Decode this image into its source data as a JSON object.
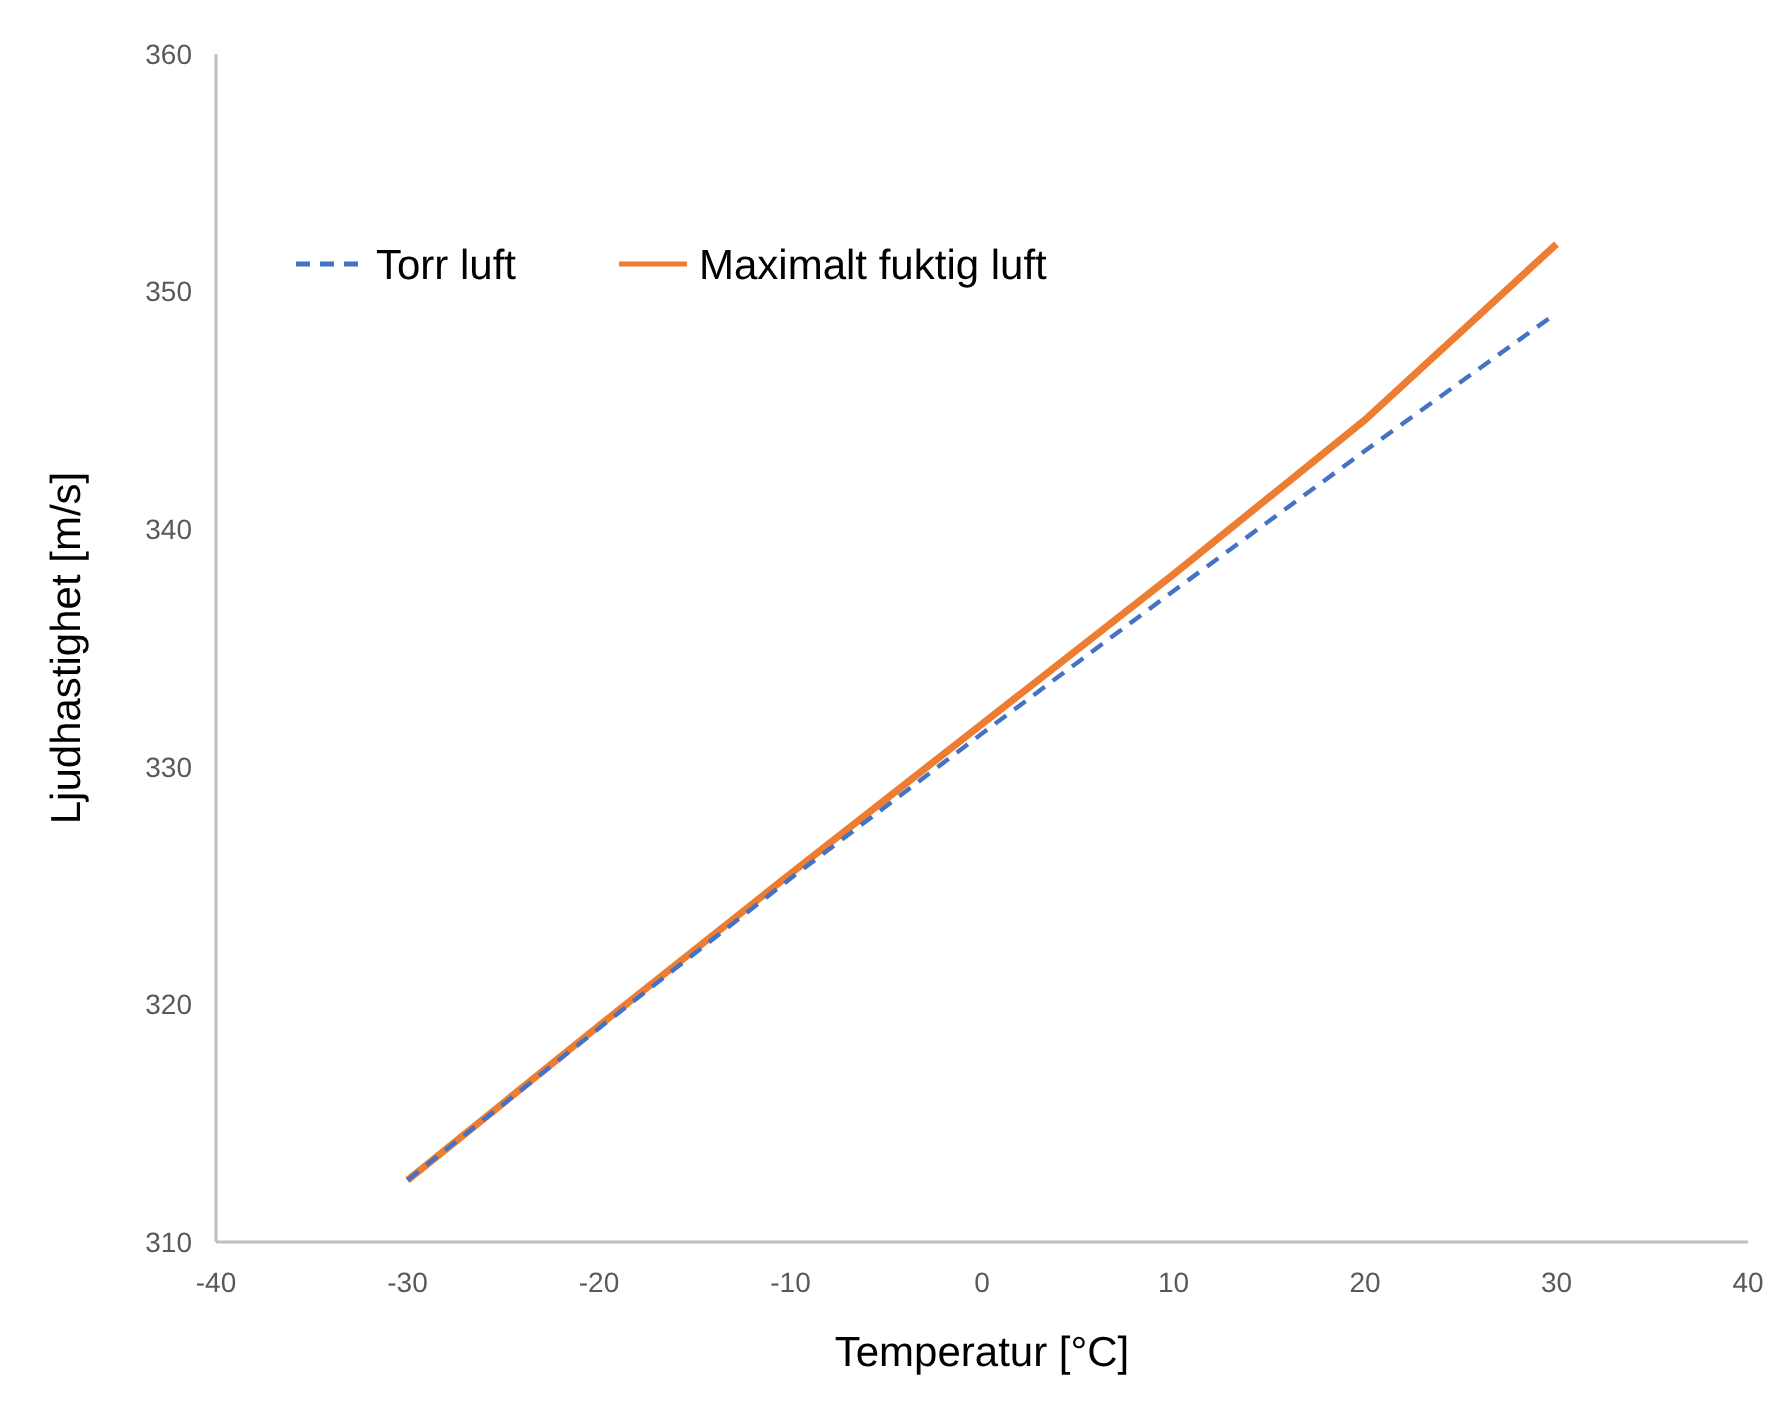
{
  "chart_data": {
    "type": "line",
    "xlabel": "Temperatur [°C]",
    "ylabel": "Ljudhastighet [m/s]",
    "x": [
      -30,
      -20,
      -10,
      0,
      10,
      20,
      30
    ],
    "series": [
      {
        "name": "Torr luft",
        "color": "#4472c4",
        "line_style": "dashed",
        "values": [
          312.6,
          319.0,
          325.3,
          331.4,
          337.4,
          343.3,
          349.1
        ]
      },
      {
        "name": "Maximalt fuktig luft",
        "color": "#ed7d31",
        "line_style": "solid",
        "values": [
          312.6,
          319.1,
          325.5,
          331.8,
          338.1,
          344.6,
          352.0
        ]
      }
    ],
    "xlim": [
      -40,
      40
    ],
    "xticks": [
      -40,
      -30,
      -20,
      -10,
      0,
      10,
      20,
      30,
      40
    ],
    "ylim": [
      310,
      360
    ],
    "yticks": [
      310,
      320,
      330,
      340,
      350,
      360
    ],
    "grid": false,
    "legend": "top left",
    "marker": "none"
  }
}
